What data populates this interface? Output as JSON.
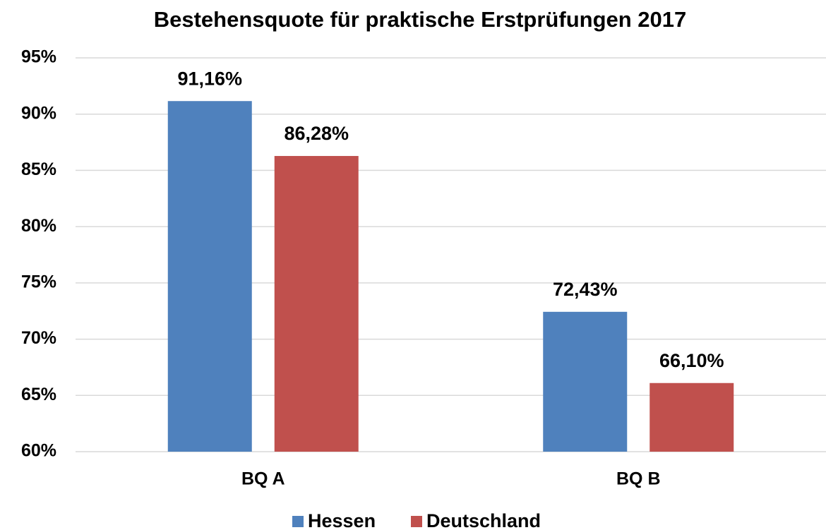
{
  "chart_data": {
    "type": "bar",
    "title": "Bestehensquote für praktische Erstprüfungen 2017",
    "categories": [
      "BQ A",
      "BQ B"
    ],
    "series": [
      {
        "name": "Hessen",
        "color": "#4f81bd",
        "values": [
          91.16,
          72.43
        ],
        "value_labels": [
          "91,16%",
          "72,43%"
        ]
      },
      {
        "name": "Deutschland",
        "color": "#c0504d",
        "values": [
          86.28,
          66.1
        ],
        "value_labels": [
          "86,28%",
          "66,10%"
        ]
      }
    ],
    "ylim": [
      60,
      95
    ],
    "yticks": [
      {
        "value": 60,
        "label": "60%"
      },
      {
        "value": 65,
        "label": "65%"
      },
      {
        "value": 70,
        "label": "70%"
      },
      {
        "value": 75,
        "label": "75%"
      },
      {
        "value": 80,
        "label": "80%"
      },
      {
        "value": 85,
        "label": "85%"
      },
      {
        "value": 90,
        "label": "90%"
      },
      {
        "value": 95,
        "label": "95%"
      }
    ],
    "grid": true,
    "legend": "bottom"
  }
}
